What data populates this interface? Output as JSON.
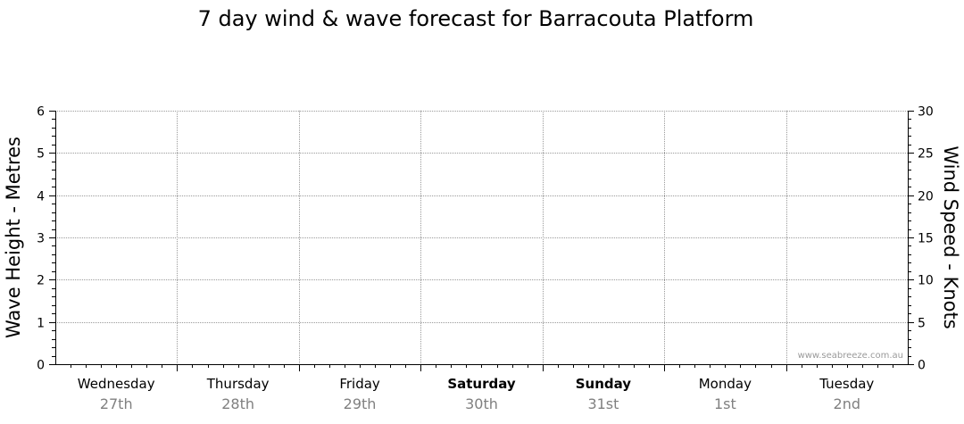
{
  "chart_data": {
    "type": "line",
    "title": "7 day wind & wave forecast for Barracouta Platform",
    "ylabel_left": "Wave Height - Metres",
    "ylabel_right": "Wind Speed - Knots",
    "ylim_left": [
      0,
      6
    ],
    "ylim_right": [
      0,
      30
    ],
    "yticks_left": [
      "0",
      "1",
      "2",
      "3",
      "4",
      "5",
      "6"
    ],
    "yticks_right": [
      "0",
      "5",
      "10",
      "15",
      "20",
      "25",
      "30"
    ],
    "days": [
      {
        "name": "Wednesday",
        "date": "27th",
        "bold": false
      },
      {
        "name": "Thursday",
        "date": "28th",
        "bold": false
      },
      {
        "name": "Friday",
        "date": "29th",
        "bold": false
      },
      {
        "name": "Saturday",
        "date": "30th",
        "bold": true
      },
      {
        "name": "Sunday",
        "date": "31st",
        "bold": true
      },
      {
        "name": "Monday",
        "date": "1st",
        "bold": false
      },
      {
        "name": "Tuesday",
        "date": "2nd",
        "bold": false
      }
    ],
    "series": [],
    "grid": true,
    "watermark": "www.seabreeze.com.au"
  }
}
